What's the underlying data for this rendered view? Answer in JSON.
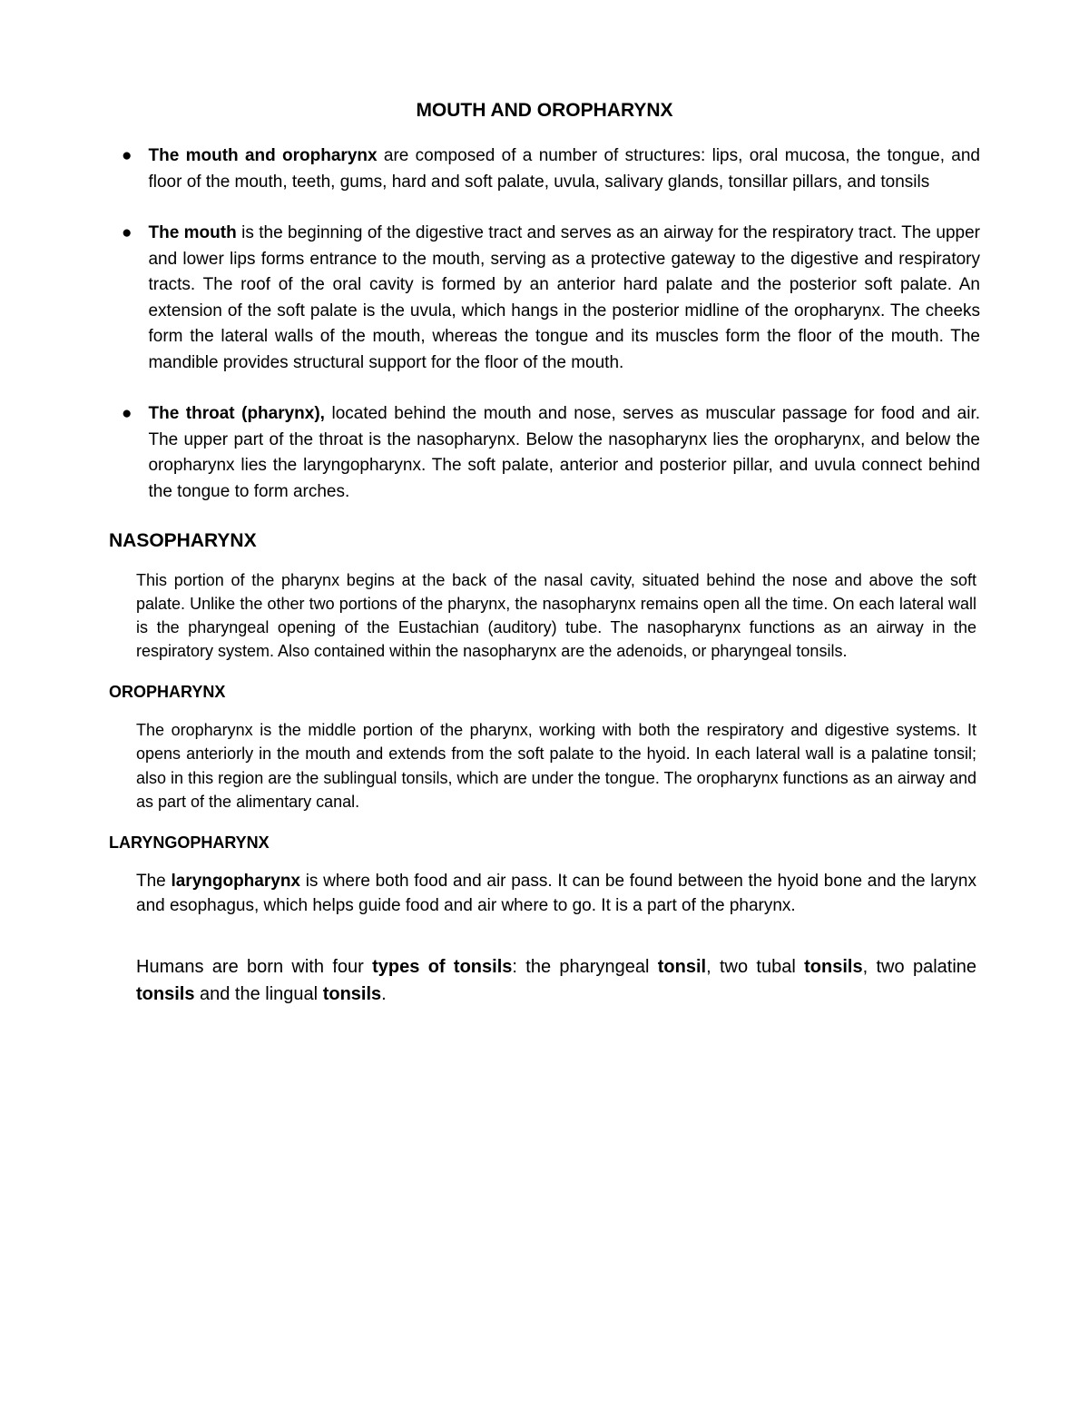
{
  "title": "MOUTH AND OROPHARYNX",
  "bullets": [
    {
      "bold_lead": "The mouth and oropharynx",
      "rest": " are composed of a number of structures: lips, oral mucosa, the tongue, and floor of the mouth, teeth, gums, hard and soft palate, uvula, salivary glands, tonsillar pillars, and tonsils"
    },
    {
      "bold_lead": "The mouth",
      "rest": " is the beginning of the digestive tract and serves as an airway for the respiratory tract. The upper and lower lips forms entrance to the mouth, serving as a protective gateway to the digestive and respiratory tracts. The roof of the oral cavity is formed by an anterior hard palate and the posterior soft palate. An extension of the soft palate is the uvula, which hangs in the posterior midline of the oropharynx. The cheeks form the lateral walls of the mouth, whereas the tongue and its muscles form the floor of the mouth. The mandible provides structural support for the floor of the mouth."
    },
    {
      "bold_lead": "The throat (pharynx),",
      "rest": " located behind the mouth and nose, serves as muscular passage for food and air. The upper part of the throat is the nasopharynx. Below the nasopharynx lies the oropharynx, and below the oropharynx lies the laryngopharynx. The soft palate, anterior and posterior pillar, and uvula connect behind the tongue to form arches."
    }
  ],
  "sections": [
    {
      "heading": "NASOPHARYNX",
      "heading_class": "sub-heading-lg",
      "body": "This portion of the pharynx begins at the back of the nasal cavity, situated behind the nose and above the soft palate. Unlike the other two portions of the pharynx, the nasopharynx remains open all the time. On each lateral wall is the pharyngeal opening of the Eustachian (auditory) tube. The nasopharynx functions as an airway in the respiratory system. Also contained within the nasopharynx are the adenoids, or pharyngeal tonsils.",
      "body_class": "body-text"
    },
    {
      "heading": "OROPHARYNX",
      "heading_class": "sub-heading",
      "body": "The oropharynx is the middle portion of the pharynx, working with both the respiratory and digestive systems. It opens anteriorly in the mouth and extends from the soft palate to the hyoid. In each lateral wall is a palatine tonsil; also in this region are the sublingual tonsils, which are under the tongue. The oropharynx functions as an airway and as part of the alimentary canal.",
      "body_class": "body-text"
    },
    {
      "heading": "LARYNGOPHARYNX",
      "heading_class": "sub-heading",
      "body_parts": {
        "pre": "The ",
        "bold": "laryngopharynx",
        "post": " is where both food and air pass. It can be found between the hyoid bone and the larynx and esophagus, which helps guide food and air where to go. It is a part of the pharynx."
      },
      "body_class": "body-text-lg"
    }
  ],
  "final": {
    "parts": [
      {
        "text": "Humans are born with four",
        "bold": false
      },
      {
        "text": " types of tonsils",
        "bold": true
      },
      {
        "text": ": the pharyngeal",
        "bold": false
      },
      {
        "text": " tonsil",
        "bold": true
      },
      {
        "text": ", two tubal",
        "bold": false
      },
      {
        "text": " tonsils",
        "bold": true
      },
      {
        "text": ", two palatine ",
        "bold": false
      },
      {
        "text": "tonsils",
        "bold": true
      },
      {
        "text": " and the lingual ",
        "bold": false
      },
      {
        "text": "tonsils",
        "bold": true
      },
      {
        "text": ".",
        "bold": false
      }
    ]
  },
  "colors": {
    "background": "#ffffff",
    "text": "#000000"
  },
  "typography": {
    "title_fontsize": 21,
    "bullet_fontsize": 19,
    "heading_lg_fontsize": 21,
    "heading_fontsize": 18,
    "body_fontsize": 18,
    "body_lg_fontsize": 19,
    "final_fontsize": 20,
    "line_height": 1.5
  }
}
